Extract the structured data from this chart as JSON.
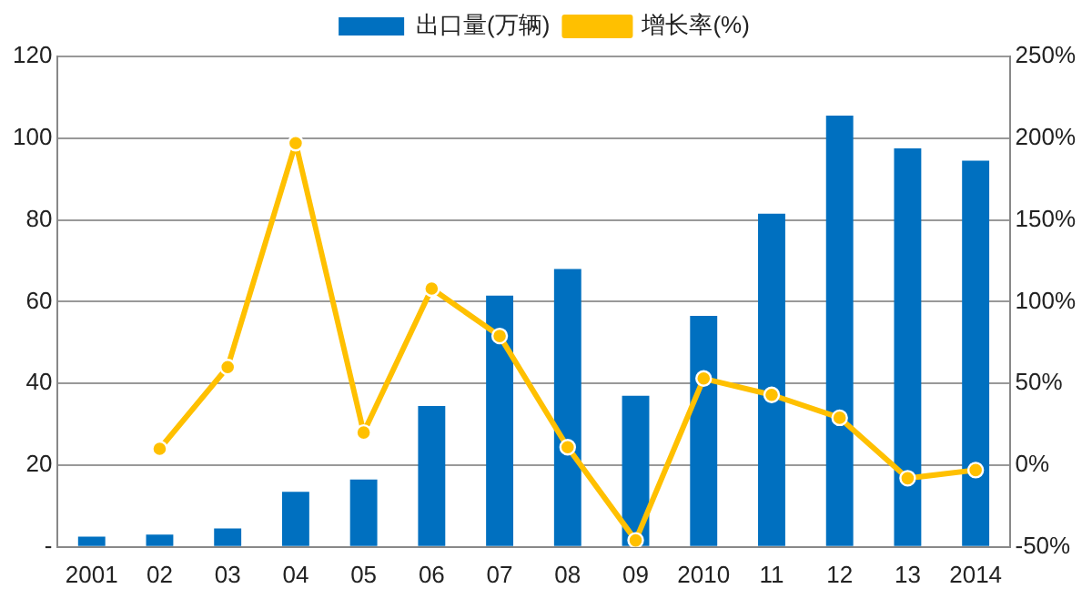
{
  "chart_data": {
    "type": "bar",
    "categories": [
      "2001",
      "02",
      "03",
      "04",
      "05",
      "06",
      "07",
      "08",
      "09",
      "2010",
      "11",
      "12",
      "13",
      "2014"
    ],
    "series": [
      {
        "name": "出口量(万辆)",
        "color": "#0070c0",
        "values": [
          2.5,
          3,
          4.5,
          13.5,
          16.5,
          34.5,
          61.5,
          68,
          37,
          56.5,
          81.5,
          105.5,
          97.5,
          94.5
        ]
      },
      {
        "name": "增长率(%)",
        "type": "line",
        "axis": "y2",
        "color": "#ffc000",
        "marker": "circle",
        "values": [
          null,
          10,
          60,
          197,
          20,
          108,
          79,
          11,
          -46,
          53,
          43,
          29,
          -8,
          -3
        ]
      }
    ],
    "ylim": [
      0,
      120
    ],
    "yticks": [
      {
        "value": 0,
        "label": "-"
      },
      20,
      40,
      60,
      80,
      100,
      120
    ],
    "y2lim": [
      -50,
      250
    ],
    "y2ticks": [
      {
        "value": -50,
        "label": "-50%"
      },
      {
        "value": 0,
        "label": "0%"
      },
      {
        "value": 50,
        "label": "50%"
      },
      {
        "value": 100,
        "label": "100%"
      },
      {
        "value": 150,
        "label": "150%"
      },
      {
        "value": 200,
        "label": "200%"
      },
      {
        "value": 250,
        "label": "250%"
      }
    ],
    "grid": "y",
    "legend": "top"
  }
}
